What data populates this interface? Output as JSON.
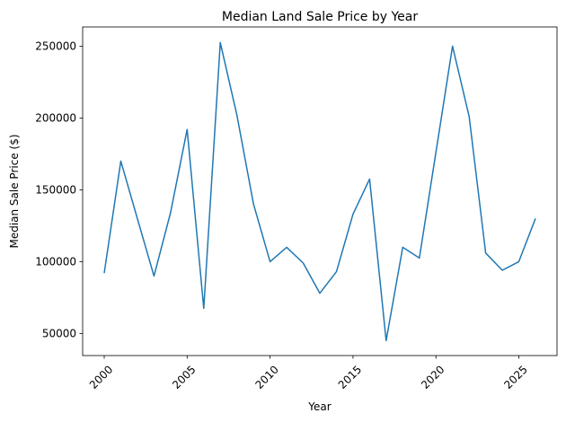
{
  "chart_data": {
    "type": "line",
    "title": "Median Land Sale Price by Year",
    "xlabel": "Year",
    "ylabel": "Median Sale Price ($)",
    "x": [
      2000,
      2001,
      2002,
      2003,
      2004,
      2005,
      2006,
      2007,
      2008,
      2009,
      2010,
      2011,
      2012,
      2013,
      2014,
      2015,
      2016,
      2017,
      2018,
      2019,
      2020,
      2021,
      2022,
      2023,
      2024,
      2025,
      2026
    ],
    "values": [
      92000,
      170000,
      130000,
      90000,
      134000,
      192000,
      67500,
      252500,
      202000,
      140000,
      100000,
      110000,
      99000,
      78000,
      93000,
      133000,
      157500,
      45000,
      110000,
      102500,
      176000,
      250000,
      201000,
      106000,
      94000,
      100000,
      130000
    ],
    "xlim": [
      1998.7,
      2027.3
    ],
    "ylim": [
      34600,
      263400
    ],
    "xticks": [
      "2000",
      "2005",
      "2010",
      "2015",
      "2020",
      "2025"
    ],
    "yticks": [
      "50000",
      "100000",
      "150000",
      "200000",
      "250000"
    ],
    "xtick_rotation": 45,
    "grid": false,
    "line_color": "#1f77b4"
  }
}
